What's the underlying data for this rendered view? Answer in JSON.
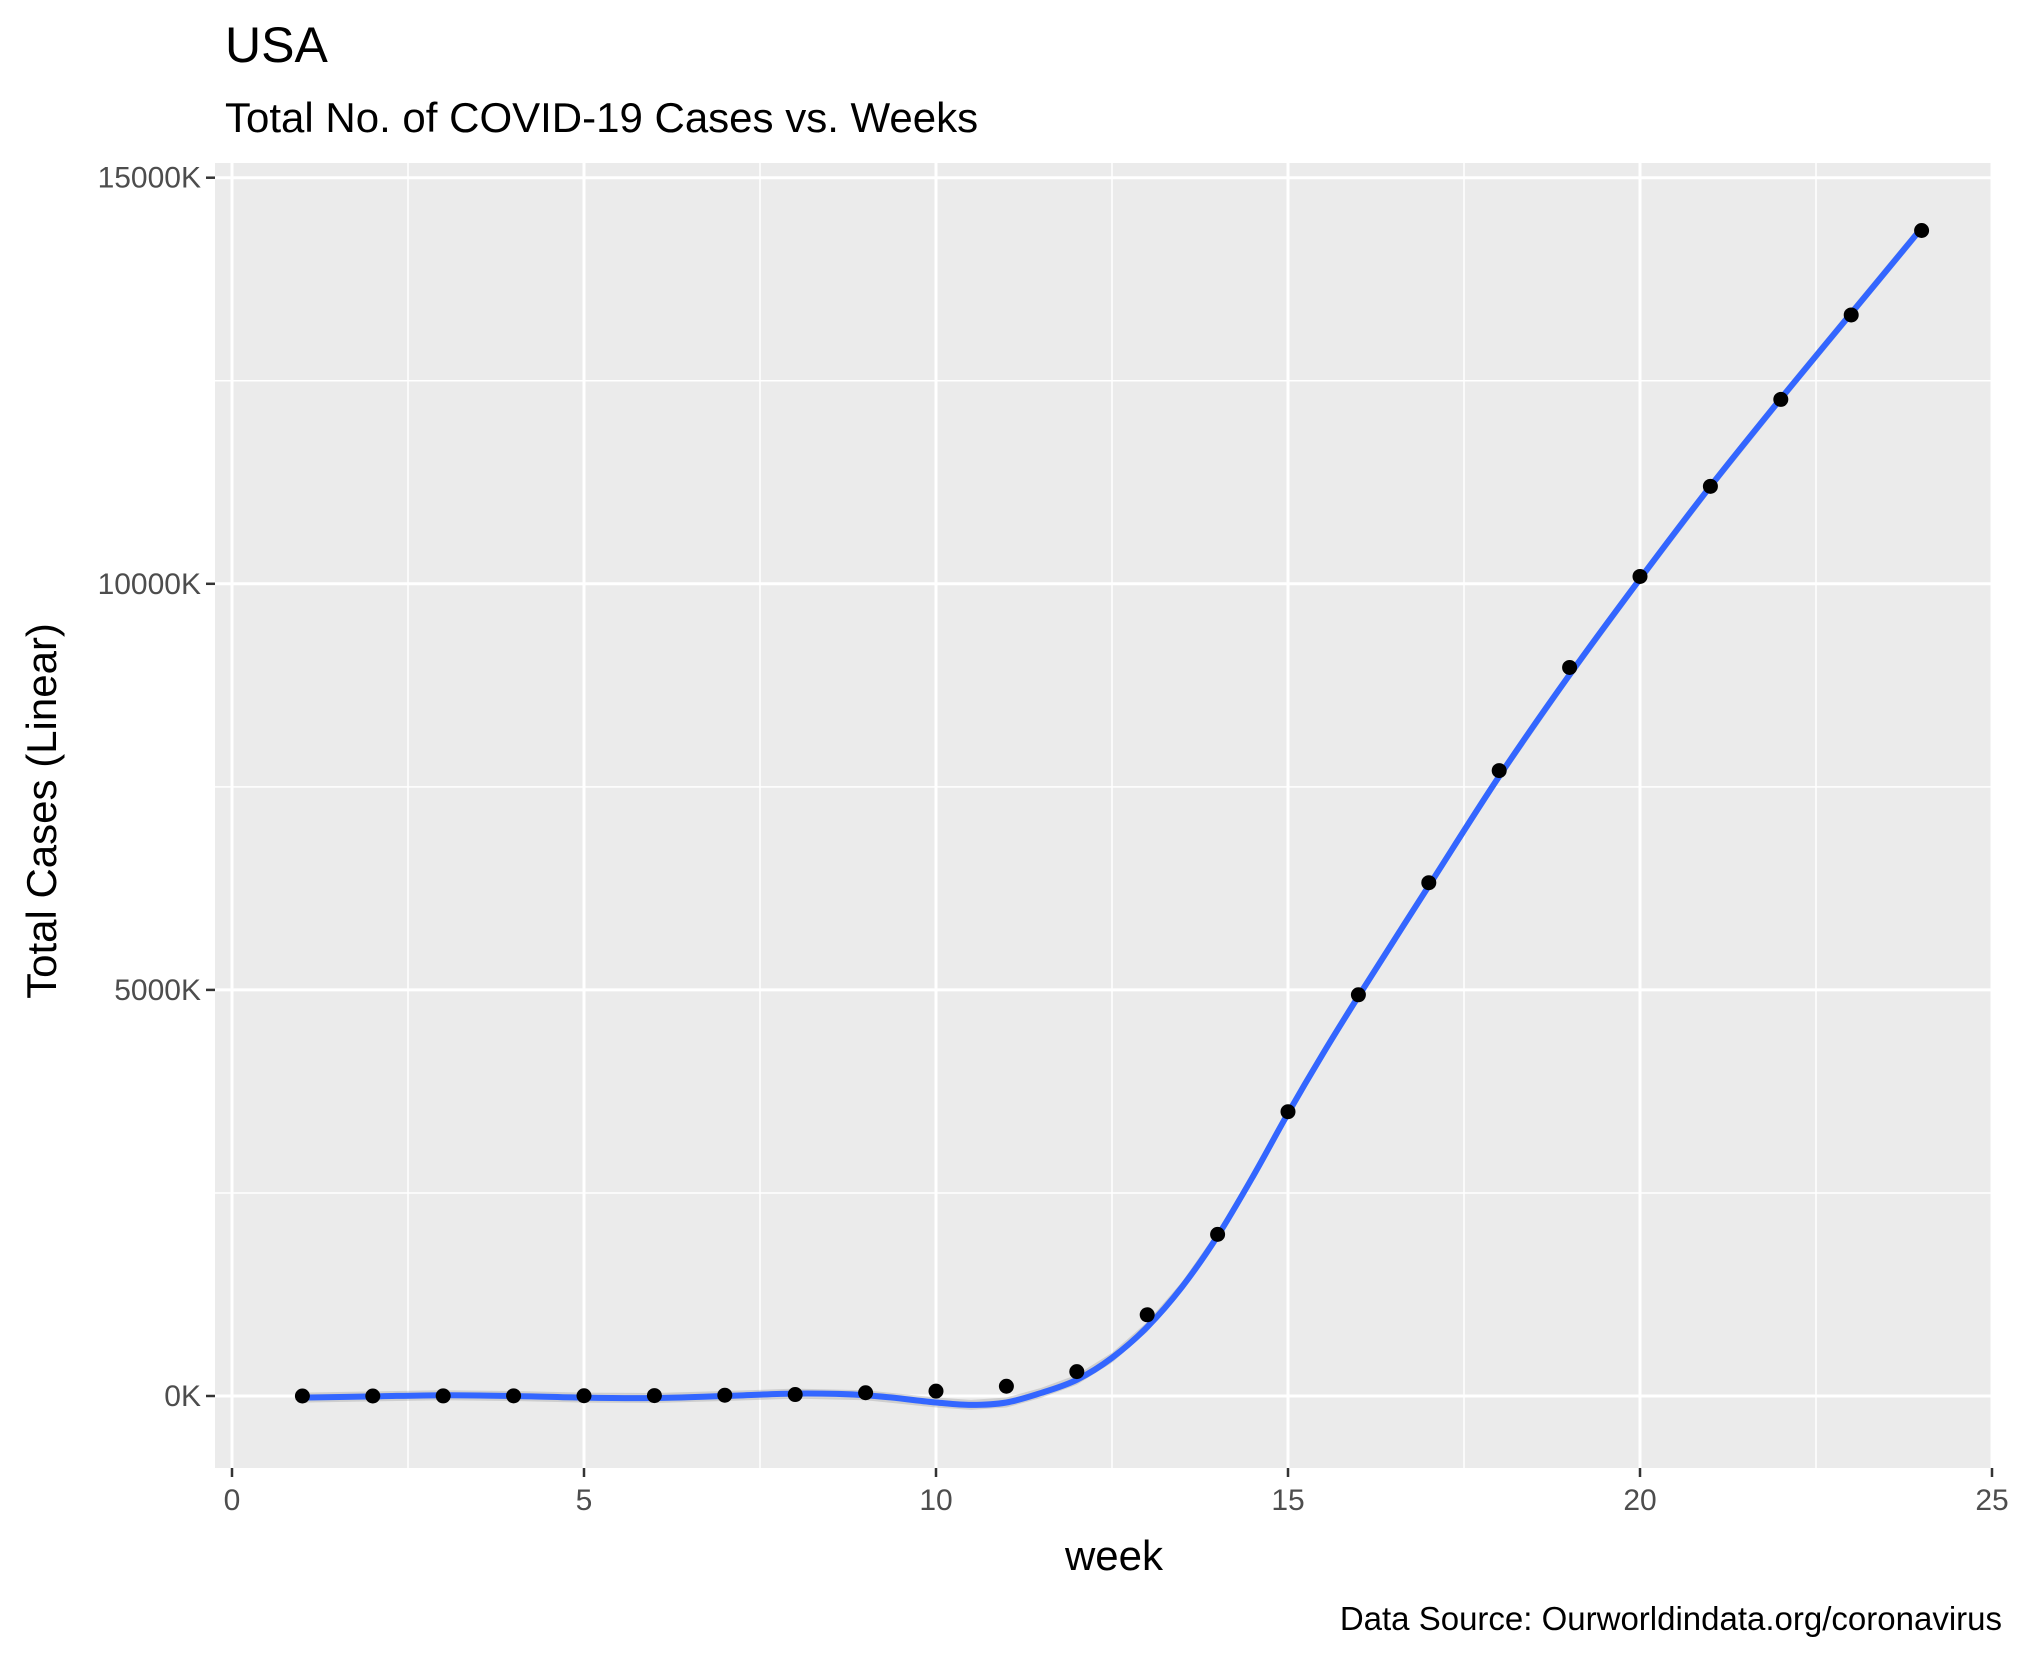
{
  "chart_data": {
    "type": "scatter",
    "title": "USA",
    "subtitle": "Total No. of COVID-19 Cases vs. Weeks",
    "xlabel": "week",
    "ylabel": "Total Cases (Linear)",
    "caption": "Data Source: Ourworldindata.org/coronavirus",
    "xlim": [
      0,
      25
    ],
    "ylim": [
      -900,
      15000
    ],
    "x_ticks": [
      0,
      5,
      10,
      15,
      20,
      25
    ],
    "x_tick_labels": [
      "0",
      "5",
      "10",
      "15",
      "20",
      "25"
    ],
    "y_ticks": [
      0,
      5000,
      10000,
      15000
    ],
    "y_tick_labels": [
      "0K",
      "5000K",
      "10000K",
      "15000K"
    ],
    "grid": true,
    "units": "thousands of cases",
    "points": {
      "x": [
        1,
        2,
        3,
        4,
        5,
        6,
        7,
        8,
        9,
        10,
        11,
        12,
        13,
        14,
        15,
        16,
        17,
        18,
        19,
        20,
        21,
        22,
        23,
        24
      ],
      "y": [
        0,
        0,
        1,
        2,
        3,
        5,
        10,
        18,
        40,
        60,
        120,
        300,
        1000,
        1990,
        3500,
        4940,
        6320,
        7700,
        8970,
        10090,
        11200,
        12270,
        13310,
        14350
      ]
    },
    "smooth_line": {
      "color": "#3366ff",
      "x": [
        1,
        2,
        3,
        4,
        5,
        6,
        7,
        8,
        9,
        10,
        10.5,
        11,
        11.5,
        12,
        12.5,
        13,
        13.5,
        14,
        14.5,
        15,
        15.5,
        16,
        17,
        18,
        19,
        20,
        21,
        22,
        23,
        24
      ],
      "y": [
        -20,
        -5,
        10,
        0,
        -20,
        -25,
        0,
        30,
        10,
        -80,
        -110,
        -80,
        40,
        200,
        470,
        850,
        1350,
        1970,
        2700,
        3480,
        4220,
        4920,
        6280,
        7630,
        8880,
        10060,
        11200,
        12280,
        13330,
        14380
      ]
    }
  }
}
